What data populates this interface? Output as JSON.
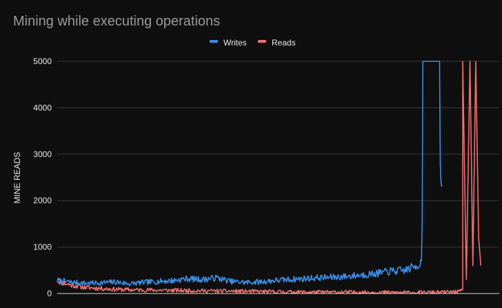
{
  "chart_data": {
    "type": "line",
    "title": "Mining while executing operations",
    "xlabel": "",
    "ylabel": "MINE READS",
    "ylim": [
      0,
      5000
    ],
    "y_ticks": [
      "0",
      "1000",
      "2000",
      "3000",
      "4000",
      "5000"
    ],
    "grid": true,
    "legend": "top-center",
    "x_count": 600,
    "series": [
      {
        "name": "Writes",
        "color": "#3b8fe8",
        "control_points": [
          [
            0,
            280
          ],
          [
            20,
            240
          ],
          [
            40,
            220
          ],
          [
            60,
            230
          ],
          [
            80,
            250
          ],
          [
            100,
            210
          ],
          [
            120,
            240
          ],
          [
            140,
            260
          ],
          [
            160,
            280
          ],
          [
            180,
            320
          ],
          [
            200,
            300
          ],
          [
            220,
            340
          ],
          [
            240,
            260
          ],
          [
            260,
            240
          ],
          [
            280,
            250
          ],
          [
            300,
            280
          ],
          [
            320,
            300
          ],
          [
            340,
            320
          ],
          [
            360,
            340
          ],
          [
            380,
            350
          ],
          [
            400,
            370
          ],
          [
            420,
            400
          ],
          [
            440,
            430
          ],
          [
            460,
            480
          ],
          [
            480,
            500
          ],
          [
            490,
            560
          ],
          [
            500,
            620
          ],
          [
            503,
            700
          ],
          [
            504,
            1500
          ],
          [
            505,
            5200
          ],
          [
            528,
            5200
          ],
          [
            529,
            2800
          ],
          [
            530,
            2400
          ],
          [
            531,
            2300
          ]
        ],
        "end_index": 531
      },
      {
        "name": "Reads",
        "color": "#f07070",
        "control_points": [
          [
            0,
            280
          ],
          [
            10,
            220
          ],
          [
            20,
            180
          ],
          [
            40,
            130
          ],
          [
            60,
            110
          ],
          [
            80,
            90
          ],
          [
            100,
            80
          ],
          [
            150,
            70
          ],
          [
            200,
            60
          ],
          [
            250,
            50
          ],
          [
            300,
            40
          ],
          [
            350,
            30
          ],
          [
            400,
            30
          ],
          [
            450,
            25
          ],
          [
            500,
            20
          ],
          [
            540,
            30
          ],
          [
            555,
            40
          ],
          [
            560,
            60
          ]
        ],
        "spikes": [
          [
            560,
            5200
          ],
          [
            565,
            300
          ],
          [
            570,
            5200
          ],
          [
            574,
            600
          ],
          [
            578,
            5200
          ],
          [
            582,
            1200
          ],
          [
            585,
            600
          ]
        ],
        "end_index": 585
      }
    ]
  }
}
